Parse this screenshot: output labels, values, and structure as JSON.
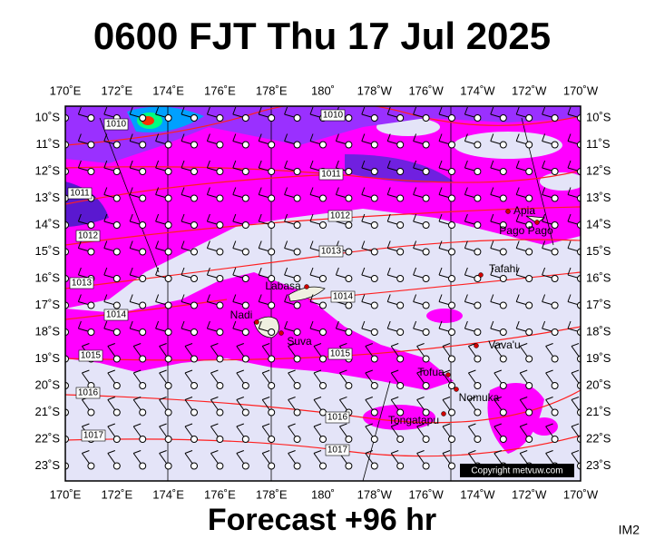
{
  "title": "0600 FJT Thu 17 Jul 2025",
  "footer": "Forecast +96 hr",
  "corner_label": "IM2",
  "copyright": "Copyright metvuw.com",
  "lon_labels": [
    "170˚E",
    "172˚E",
    "174˚E",
    "176˚E",
    "178˚E",
    "180˚",
    "178˚W",
    "176˚W",
    "174˚W",
    "172˚W",
    "170˚W"
  ],
  "lat_labels": [
    "10˚S",
    "11˚S",
    "12˚S",
    "13˚S",
    "14˚S",
    "15˚S",
    "16˚S",
    "17˚S",
    "18˚S",
    "19˚S",
    "20˚S",
    "21˚S",
    "22˚S",
    "23˚S"
  ],
  "isobar_labels": [
    "1010",
    "1010",
    "1011",
    "1011",
    "1012",
    "1012",
    "1013",
    "1013",
    "1014",
    "1014",
    "1015",
    "1015",
    "1016",
    "1016",
    "1017",
    "1017"
  ],
  "places": [
    "Labasa",
    "Nadi",
    "Suva",
    "Apia",
    "Pago Pago",
    "Tafahi",
    "Vava'u",
    "Tofua",
    "Nomuka",
    "Tongatapu"
  ]
}
